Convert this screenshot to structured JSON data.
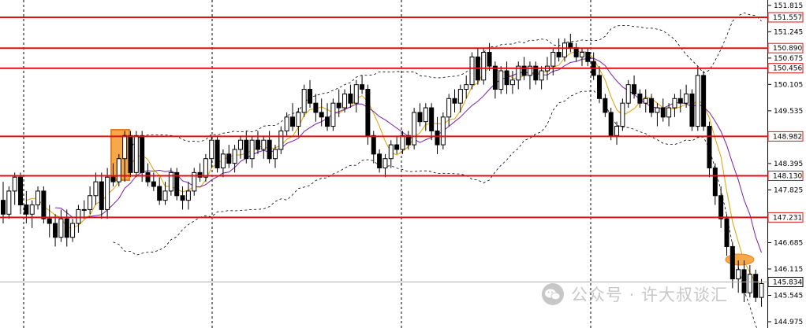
{
  "chart_data": {
    "type": "candlestick",
    "y_axis": {
      "position": "right",
      "range": [
        144.975,
        152.0
      ],
      "ticks": [
        "151.815",
        "151.245",
        "150.675",
        "150.105",
        "149.535",
        "148.395",
        "147.825",
        "146.685",
        "146.115",
        "145.545",
        "144.975"
      ]
    },
    "price_levels": [
      {
        "label": "151.557",
        "value": 151.557
      },
      {
        "label": "150.890",
        "value": 150.89
      },
      {
        "label": "150.456",
        "value": 150.456
      },
      {
        "label": "148.982",
        "value": 148.982
      },
      {
        "label": "148.130",
        "value": 148.13
      },
      {
        "label": "147.231",
        "value": 147.231
      }
    ],
    "current_price": {
      "label": "145.834",
      "value": 145.834
    },
    "candles_ohlc": [
      [
        147.6,
        148.0,
        147.1,
        147.3
      ],
      [
        147.3,
        147.9,
        147.2,
        147.8
      ],
      [
        147.8,
        148.2,
        147.5,
        148.1
      ],
      [
        148.1,
        148.2,
        147.3,
        147.5
      ],
      [
        147.5,
        147.8,
        147.1,
        147.3
      ],
      [
        147.3,
        147.6,
        147.0,
        147.5
      ],
      [
        147.5,
        147.9,
        147.4,
        147.8
      ],
      [
        147.8,
        147.9,
        147.1,
        147.2
      ],
      [
        147.2,
        147.5,
        146.8,
        147.1
      ],
      [
        147.1,
        147.3,
        146.6,
        146.8
      ],
      [
        146.8,
        147.4,
        146.7,
        147.2
      ],
      [
        147.2,
        147.4,
        146.6,
        146.8
      ],
      [
        146.8,
        147.2,
        146.7,
        147.1
      ],
      [
        147.1,
        147.5,
        146.9,
        147.4
      ],
      [
        147.4,
        147.6,
        147.2,
        147.4
      ],
      [
        147.4,
        147.9,
        147.3,
        147.7
      ],
      [
        147.7,
        148.2,
        147.5,
        148.0
      ],
      [
        148.0,
        148.2,
        147.2,
        147.4
      ],
      [
        147.4,
        148.3,
        147.2,
        148.1
      ],
      [
        148.1,
        148.4,
        147.9,
        148.0
      ],
      [
        148.0,
        148.6,
        147.9,
        148.5
      ],
      [
        148.5,
        149.1,
        148.0,
        149.0
      ],
      [
        149.0,
        149.1,
        148.1,
        148.2
      ],
      [
        148.2,
        149.1,
        148.1,
        149.0
      ],
      [
        149.0,
        149.1,
        148.0,
        148.2
      ],
      [
        148.2,
        148.4,
        147.9,
        148.0
      ],
      [
        148.0,
        148.2,
        147.8,
        147.9
      ],
      [
        147.9,
        148.1,
        147.5,
        147.6
      ],
      [
        147.6,
        148.0,
        147.5,
        147.8
      ],
      [
        147.8,
        148.3,
        147.7,
        148.2
      ],
      [
        148.2,
        148.3,
        147.6,
        147.7
      ],
      [
        147.7,
        147.9,
        147.4,
        147.6
      ],
      [
        147.6,
        148.0,
        147.4,
        147.8
      ],
      [
        147.8,
        148.3,
        147.7,
        148.2
      ],
      [
        148.2,
        148.4,
        148.0,
        148.1
      ],
      [
        148.1,
        148.6,
        148.0,
        148.5
      ],
      [
        148.5,
        149.0,
        148.3,
        148.9
      ],
      [
        148.9,
        149.0,
        148.2,
        148.3
      ],
      [
        148.3,
        148.7,
        148.1,
        148.6
      ],
      [
        148.6,
        148.8,
        148.3,
        148.4
      ],
      [
        148.4,
        148.8,
        148.2,
        148.7
      ],
      [
        148.7,
        149.0,
        148.5,
        148.9
      ],
      [
        148.9,
        149.1,
        148.4,
        148.5
      ],
      [
        148.5,
        149.0,
        148.3,
        148.9
      ],
      [
        148.9,
        149.1,
        148.6,
        148.7
      ],
      [
        148.7,
        149.0,
        148.5,
        148.9
      ],
      [
        148.9,
        149.1,
        148.4,
        148.5
      ],
      [
        148.5,
        148.8,
        148.3,
        148.7
      ],
      [
        148.7,
        149.2,
        148.6,
        149.1
      ],
      [
        149.1,
        149.5,
        149.0,
        149.4
      ],
      [
        149.4,
        149.7,
        149.1,
        149.2
      ],
      [
        149.2,
        149.6,
        149.0,
        149.5
      ],
      [
        149.5,
        150.1,
        149.4,
        150.0
      ],
      [
        150.0,
        150.2,
        149.6,
        149.7
      ],
      [
        149.7,
        149.9,
        149.3,
        149.5
      ],
      [
        149.5,
        149.8,
        149.2,
        149.4
      ],
      [
        149.4,
        149.7,
        149.1,
        149.2
      ],
      [
        149.2,
        149.8,
        149.1,
        149.7
      ],
      [
        149.7,
        150.0,
        149.4,
        149.6
      ],
      [
        149.6,
        150.0,
        149.5,
        149.9
      ],
      [
        149.9,
        150.1,
        149.6,
        149.7
      ],
      [
        149.7,
        150.2,
        149.5,
        150.1
      ],
      [
        150.1,
        150.3,
        149.9,
        150.0
      ],
      [
        150.0,
        150.1,
        148.8,
        149.0
      ],
      [
        149.0,
        149.1,
        148.4,
        148.6
      ],
      [
        148.6,
        148.7,
        148.2,
        148.3
      ],
      [
        148.3,
        148.6,
        148.1,
        148.5
      ],
      [
        148.5,
        148.9,
        148.3,
        148.8
      ],
      [
        148.8,
        149.0,
        148.6,
        148.7
      ],
      [
        148.7,
        149.1,
        148.6,
        149.0
      ],
      [
        149.0,
        149.1,
        148.7,
        148.8
      ],
      [
        148.8,
        149.6,
        148.7,
        149.5
      ],
      [
        149.5,
        149.7,
        149.2,
        149.3
      ],
      [
        149.3,
        149.7,
        149.1,
        149.6
      ],
      [
        149.6,
        149.7,
        148.9,
        149.1
      ],
      [
        149.1,
        149.4,
        148.6,
        148.8
      ],
      [
        148.8,
        149.5,
        148.7,
        149.4
      ],
      [
        149.4,
        149.9,
        149.2,
        149.8
      ],
      [
        149.8,
        150.0,
        149.5,
        149.7
      ],
      [
        149.7,
        150.1,
        149.5,
        150.0
      ],
      [
        150.0,
        150.3,
        149.8,
        150.1
      ],
      [
        150.1,
        150.8,
        150.0,
        150.7
      ],
      [
        150.7,
        150.9,
        150.1,
        150.2
      ],
      [
        150.2,
        150.9,
        150.1,
        150.8
      ],
      [
        150.8,
        151.0,
        150.4,
        150.5
      ],
      [
        150.5,
        150.6,
        149.8,
        150.0
      ],
      [
        150.0,
        150.5,
        149.9,
        150.4
      ],
      [
        150.4,
        150.6,
        149.9,
        150.1
      ],
      [
        150.1,
        150.4,
        149.9,
        150.2
      ],
      [
        150.2,
        150.6,
        150.0,
        150.5
      ],
      [
        150.5,
        150.7,
        150.2,
        150.3
      ],
      [
        150.3,
        150.6,
        150.0,
        150.5
      ],
      [
        150.5,
        150.6,
        150.1,
        150.2
      ],
      [
        150.2,
        150.5,
        150.0,
        150.4
      ],
      [
        150.4,
        150.7,
        150.2,
        150.5
      ],
      [
        150.5,
        150.9,
        150.3,
        150.8
      ],
      [
        150.8,
        151.1,
        150.6,
        150.7
      ],
      [
        150.7,
        151.1,
        150.6,
        151.0
      ],
      [
        151.0,
        151.2,
        150.8,
        150.9
      ],
      [
        150.9,
        151.0,
        150.6,
        150.7
      ],
      [
        150.7,
        150.9,
        150.5,
        150.8
      ],
      [
        150.8,
        150.9,
        150.5,
        150.6
      ],
      [
        150.6,
        150.8,
        150.2,
        150.3
      ],
      [
        150.3,
        150.5,
        149.7,
        149.8
      ],
      [
        149.8,
        149.9,
        149.4,
        149.5
      ],
      [
        149.5,
        149.6,
        148.9,
        149.0
      ],
      [
        149.0,
        149.3,
        148.8,
        149.2
      ],
      [
        149.2,
        149.8,
        149.1,
        149.7
      ],
      [
        149.7,
        150.2,
        149.6,
        150.1
      ],
      [
        150.1,
        150.3,
        149.8,
        149.9
      ],
      [
        149.9,
        150.0,
        149.6,
        149.7
      ],
      [
        149.7,
        150.0,
        149.5,
        149.8
      ],
      [
        149.8,
        149.9,
        149.4,
        149.5
      ],
      [
        149.5,
        149.7,
        149.2,
        149.6
      ],
      [
        149.6,
        149.8,
        149.3,
        149.4
      ],
      [
        149.4,
        149.7,
        149.2,
        149.6
      ],
      [
        149.6,
        149.9,
        149.4,
        149.8
      ],
      [
        149.8,
        150.0,
        149.5,
        149.7
      ],
      [
        149.7,
        150.1,
        149.6,
        149.9
      ],
      [
        149.9,
        150.0,
        149.1,
        149.2
      ],
      [
        149.2,
        150.5,
        149.1,
        150.3
      ],
      [
        150.3,
        150.4,
        149.1,
        149.2
      ],
      [
        149.2,
        149.3,
        148.1,
        148.3
      ],
      [
        148.3,
        148.4,
        147.5,
        147.7
      ],
      [
        147.7,
        147.9,
        147.0,
        147.2
      ],
      [
        147.2,
        147.3,
        146.4,
        146.6
      ],
      [
        146.6,
        146.7,
        145.7,
        145.9
      ],
      [
        145.9,
        146.3,
        145.6,
        146.1
      ],
      [
        146.1,
        146.3,
        145.4,
        145.6
      ],
      [
        145.6,
        146.2,
        145.5,
        146.0
      ],
      [
        146.0,
        146.1,
        145.4,
        145.5
      ],
      [
        145.5,
        145.9,
        145.3,
        145.8
      ]
    ]
  }
}
